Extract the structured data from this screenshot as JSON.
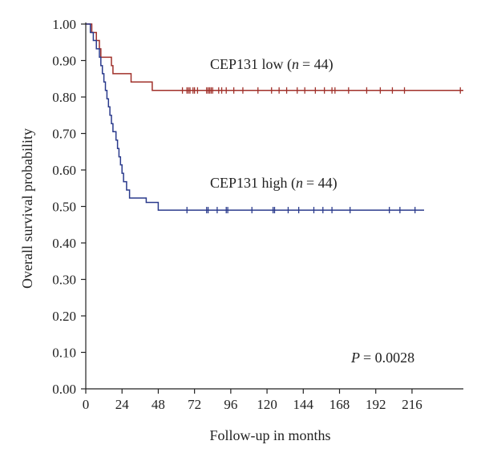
{
  "chart_data": {
    "type": "line",
    "title": "",
    "xlabel": "Follow-up in months",
    "ylabel": "Overall survival probability",
    "xlim": [
      0,
      250
    ],
    "ylim": [
      0,
      1.0
    ],
    "x_ticks": [
      "0",
      "24",
      "48",
      "72",
      "96",
      "120",
      "144",
      "168",
      "192",
      "216"
    ],
    "y_ticks": [
      "0.00",
      "0.10",
      "0.20",
      "0.30",
      "0.40",
      "0.50",
      "0.60",
      "0.70",
      "0.80",
      "0.90",
      "1.00"
    ],
    "grid": false,
    "series": [
      {
        "name": "CEP131 low",
        "n_label": "n",
        "n_value": "= 44)",
        "color": "#a0302a",
        "steps": [
          [
            0,
            1.0
          ],
          [
            4,
            0.977
          ],
          [
            7,
            0.955
          ],
          [
            9,
            0.932
          ],
          [
            10,
            0.909
          ],
          [
            17,
            0.886
          ],
          [
            18,
            0.864
          ],
          [
            30,
            0.841
          ],
          [
            44,
            0.818
          ],
          [
            250,
            0.818
          ]
        ],
        "censored": [
          64,
          67,
          68,
          69,
          71,
          72,
          74,
          80,
          81,
          82,
          83,
          84,
          88,
          90,
          93,
          98,
          104,
          114,
          123,
          128,
          133,
          140,
          145,
          152,
          158,
          163,
          165,
          174,
          186,
          195,
          203,
          211,
          248
        ]
      },
      {
        "name": "CEP131 high",
        "n_label": "n",
        "n_value": "= 44)",
        "color": "#2a3a8c",
        "steps": [
          [
            0,
            1.0
          ],
          [
            3,
            0.977
          ],
          [
            5,
            0.955
          ],
          [
            7,
            0.932
          ],
          [
            9,
            0.909
          ],
          [
            10,
            0.886
          ],
          [
            11,
            0.864
          ],
          [
            12,
            0.841
          ],
          [
            13,
            0.818
          ],
          [
            14,
            0.795
          ],
          [
            15,
            0.773
          ],
          [
            16,
            0.75
          ],
          [
            17,
            0.727
          ],
          [
            18,
            0.705
          ],
          [
            20,
            0.682
          ],
          [
            21,
            0.659
          ],
          [
            22,
            0.636
          ],
          [
            23,
            0.614
          ],
          [
            24,
            0.591
          ],
          [
            25,
            0.568
          ],
          [
            27,
            0.545
          ],
          [
            29,
            0.523
          ],
          [
            40,
            0.511
          ],
          [
            48,
            0.49
          ],
          [
            224,
            0.49
          ]
        ],
        "censored": [
          67,
          80,
          81,
          87,
          93,
          94,
          110,
          124,
          125,
          134,
          141,
          151,
          157,
          163,
          175,
          201,
          208,
          218
        ]
      }
    ],
    "annotations": [
      {
        "text": "P",
        "value": "= 0.0028"
      }
    ]
  },
  "labels": {
    "low_prefix": "CEP131 low (",
    "high_prefix": "CEP131 high (",
    "p_label": "P",
    "p_value": "= 0.0028"
  }
}
